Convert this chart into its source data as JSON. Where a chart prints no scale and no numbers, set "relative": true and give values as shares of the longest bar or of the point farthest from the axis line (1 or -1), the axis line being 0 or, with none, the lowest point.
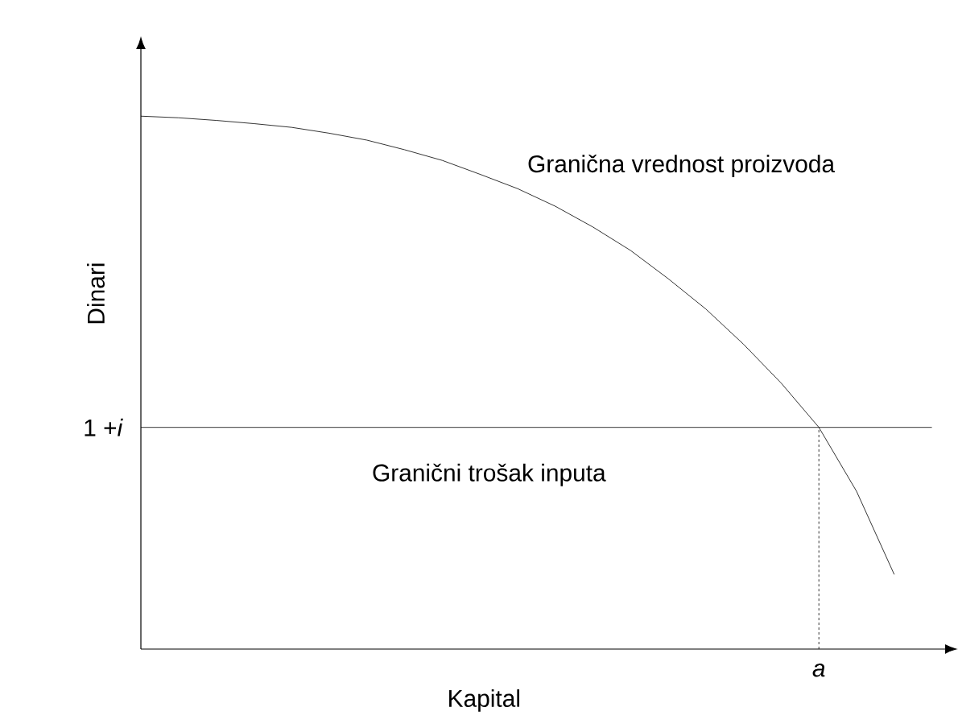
{
  "chart_data": {
    "type": "line",
    "relative": true,
    "xlabel": "Kapital",
    "ylabel": "Dinari",
    "categories": [
      null,
      null,
      null,
      null,
      null,
      null,
      null,
      null,
      null,
      null,
      null,
      null,
      null,
      null,
      null,
      null,
      null,
      null,
      null,
      null,
      null,
      null
    ],
    "series": [
      {
        "name": "Granična vrednost proizvoda",
        "color": "#000000",
        "values": [
          1.0,
          0.997,
          0.992,
          0.986,
          0.979,
          0.968,
          0.955,
          0.937,
          0.917,
          0.891,
          0.864,
          0.831,
          0.792,
          0.748,
          0.695,
          0.638,
          0.572,
          0.499,
          0.416,
          0.296,
          0.14,
          null
        ]
      },
      {
        "name": "Granični trošak inputa",
        "color": "#000000",
        "values": [
          0.416,
          0.416,
          0.416,
          0.416,
          0.416,
          0.416,
          0.416,
          0.416,
          0.416,
          0.416,
          0.416,
          0.416,
          0.416,
          0.416,
          0.416,
          0.416,
          0.416,
          0.416,
          0.416,
          0.416,
          0.416,
          0.416
        ]
      }
    ],
    "annotations": [
      "1 +*i*",
      "*a*"
    ]
  }
}
